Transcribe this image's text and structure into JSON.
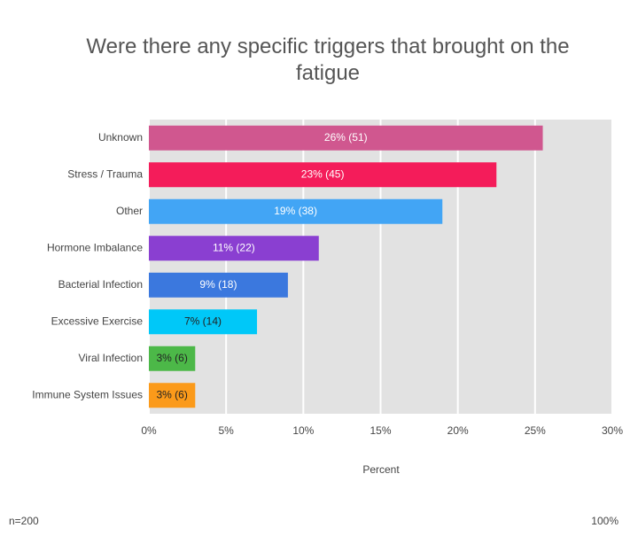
{
  "chart_data": {
    "type": "barh",
    "title": "Were there any specific triggers that brought on the fatigue",
    "xlabel": "Percent",
    "footnote_left": "n=200",
    "footnote_right": "100%",
    "categories": [
      "Unknown",
      "Stress / Trauma",
      "Other",
      "Hormone Imbalance",
      "Bacterial Infection",
      "Excessive Exercise",
      "Viral Infection",
      "Immune System Issues"
    ],
    "values": [
      25.5,
      22.5,
      19,
      11,
      9,
      7,
      3,
      3
    ],
    "value_labels": [
      "26% (51)",
      "23% (45)",
      "19% (38)",
      "11% (22)",
      "9% (18)",
      "7% (14)",
      "3% (6)",
      "3% (6)"
    ],
    "colors": [
      "#d0578f",
      "#f41c5a",
      "#42a5f5",
      "#8a3fd1",
      "#3b78de",
      "#00c8f8",
      "#4cb848",
      "#fb9a1a"
    ],
    "label_colors": [
      "#ffffff",
      "#ffffff",
      "#ffffff",
      "#ffffff",
      "#ffffff",
      "#222222",
      "#222222",
      "#222222"
    ],
    "xlim": [
      0,
      30
    ],
    "xticks": [
      {
        "value": 0,
        "label": "0%"
      },
      {
        "value": 5,
        "label": "5%"
      },
      {
        "value": 10,
        "label": "10%"
      },
      {
        "value": 15,
        "label": "15%"
      },
      {
        "value": 20,
        "label": "20%"
      },
      {
        "value": 25,
        "label": "25%"
      },
      {
        "value": 30,
        "label": "30%"
      }
    ],
    "grid": true
  }
}
